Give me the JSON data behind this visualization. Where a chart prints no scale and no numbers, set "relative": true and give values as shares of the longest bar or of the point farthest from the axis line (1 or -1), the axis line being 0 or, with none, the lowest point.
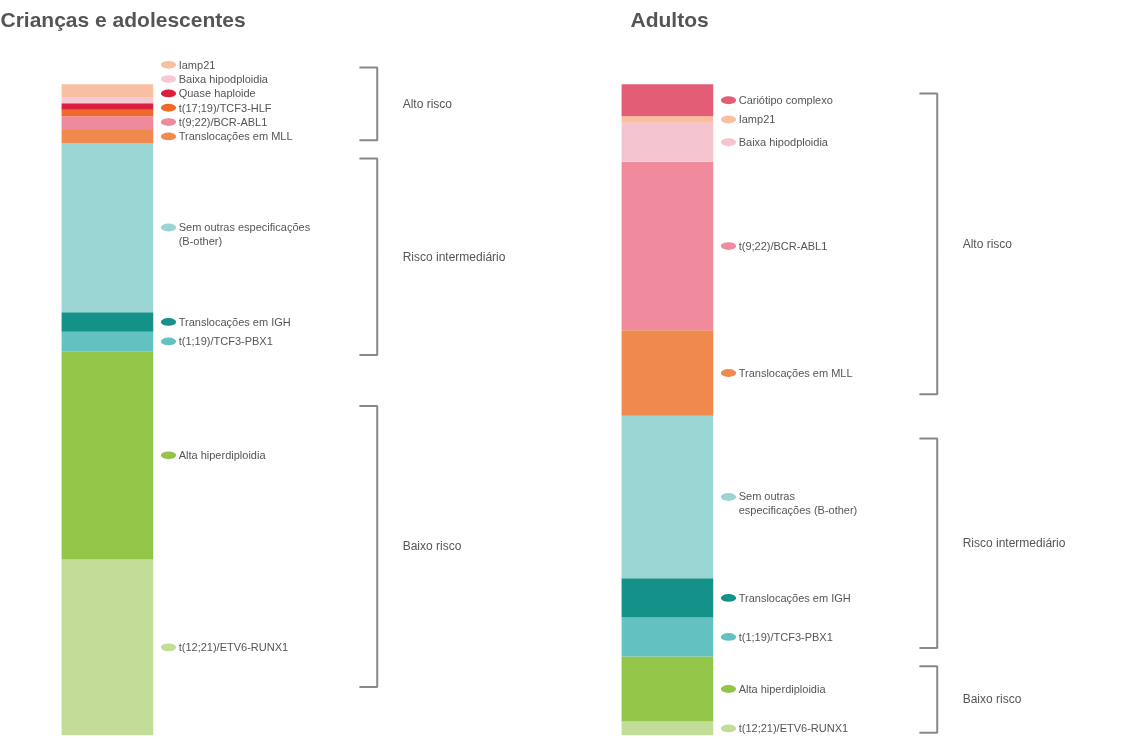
{
  "chart_data": [
    {
      "type": "bar",
      "title": "Crianças e adolescentes",
      "categories": [
        null
      ],
      "stacked": true,
      "relative": true,
      "legend": "right",
      "series": [
        {
          "name": "t(12;21)/ETV6-RUNX1",
          "color": "#c2dd98",
          "values": [
            0.27
          ]
        },
        {
          "name": "Alta hiperdiploidia",
          "color": "#93c548",
          "values": [
            0.32
          ]
        },
        {
          "name": "t(1;19)/TCF3-PBX1",
          "color": "#64c1c1",
          "values": [
            0.03
          ]
        },
        {
          "name": "Translocações em IGH",
          "color": "#149189",
          "values": [
            0.03
          ]
        },
        {
          "name": "Sem outras especificações (B-other)",
          "color": "#9ad5d3",
          "values": [
            0.26
          ]
        },
        {
          "name": "Translocações em MLL",
          "color": "#f0894e",
          "values": [
            0.02
          ]
        },
        {
          "name": "t(9;22)/BCR-ABL1",
          "color": "#ee8a9b",
          "values": [
            0.021
          ]
        },
        {
          "name": "t(17;19)/TCF3-HLF",
          "color": "#ef6a2a",
          "values": [
            0.01
          ]
        },
        {
          "name": "Quase haploide",
          "color": "#d9213f",
          "values": [
            0.01
          ]
        },
        {
          "name": "Baixa hipodploidia",
          "color": "#f7c9d4",
          "values": [
            0.009
          ]
        },
        {
          "name": "Iamp21",
          "color": "#f9bfa0",
          "values": [
            0.02
          ]
        }
      ],
      "annotations": [
        "Alto risco",
        "Risco intermediário",
        "Baixo risco"
      ]
    },
    {
      "type": "bar",
      "title": "Adultos",
      "categories": [
        null
      ],
      "stacked": true,
      "relative": true,
      "legend": "right",
      "series": [
        {
          "name": "t(12;21)/ETV6-RUNX1",
          "color": "#c2dd98",
          "values": [
            0.021
          ]
        },
        {
          "name": "Alta hiperdiploidia",
          "color": "#93c548",
          "values": [
            0.1
          ]
        },
        {
          "name": "t(1;19)/TCF3-PBX1",
          "color": "#64c1c1",
          "values": [
            0.06
          ]
        },
        {
          "name": "Translocações em IGH",
          "color": "#149189",
          "values": [
            0.06
          ]
        },
        {
          "name": "Sem outras especificações (B-other)",
          "color": "#9ad5d3",
          "values": [
            0.25
          ]
        },
        {
          "name": "Translocações em MLL",
          "color": "#f0894c",
          "values": [
            0.131
          ]
        },
        {
          "name": "t(9;22)/BCR-ABL1",
          "color": "#ef8b9c",
          "values": [
            0.259
          ]
        },
        {
          "name": "Baixa hipodploidia",
          "color": "#f5c5cf",
          "values": [
            0.06
          ]
        },
        {
          "name": "Iamp21",
          "color": "#f9bfa0",
          "values": [
            0.01
          ]
        },
        {
          "name": "Cariótipo complexo",
          "color": "#e45d76",
          "values": [
            0.049
          ]
        }
      ],
      "annotations": [
        "Alto risco",
        "Risco intermediário",
        "Baixo risco"
      ]
    }
  ]
}
